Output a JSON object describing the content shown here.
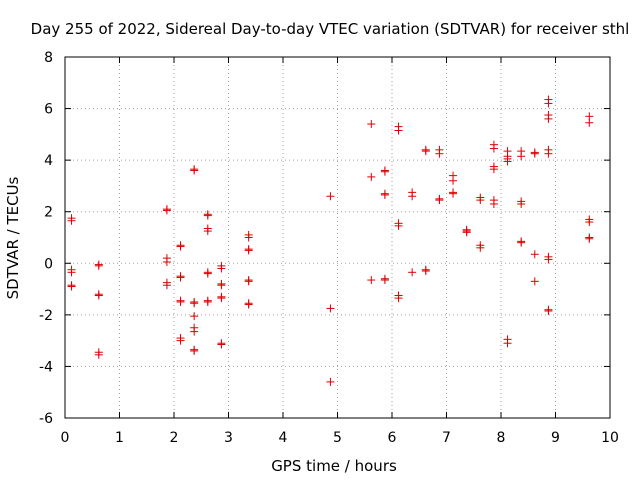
{
  "chart_data": {
    "type": "scatter",
    "title": "Day 255 of 2022, Sidereal Day-to-day VTEC variation (SDTVAR) for receiver sthl",
    "xlabel": "GPS time / hours",
    "ylabel": "SDTVAR / TECUs",
    "xlim": [
      0,
      10
    ],
    "ylim": [
      -6,
      8
    ],
    "xticks": [
      "0",
      "1",
      "2",
      "3",
      "4",
      "5",
      "6",
      "7",
      "8",
      "9",
      "10"
    ],
    "yticks": [
      "-6",
      "-4",
      "-2",
      "0",
      "2",
      "4",
      "6",
      "8"
    ],
    "grid": true,
    "marker": "+",
    "color": "#dd0000",
    "series": [
      {
        "name": "SDTVAR",
        "points": [
          [
            0.12,
            1.75
          ],
          [
            0.12,
            1.65
          ],
          [
            0.12,
            -0.25
          ],
          [
            0.12,
            -0.35
          ],
          [
            0.12,
            -0.85
          ],
          [
            0.12,
            -0.9
          ],
          [
            0.62,
            -0.05
          ],
          [
            0.62,
            -0.1
          ],
          [
            0.62,
            -1.2
          ],
          [
            0.62,
            -1.25
          ],
          [
            0.62,
            -3.45
          ],
          [
            0.62,
            -3.55
          ],
          [
            1.87,
            2.1
          ],
          [
            1.87,
            2.05
          ],
          [
            1.87,
            0.2
          ],
          [
            1.87,
            0.05
          ],
          [
            1.87,
            -0.75
          ],
          [
            1.87,
            -0.85
          ],
          [
            2.12,
            0.7
          ],
          [
            2.12,
            0.65
          ],
          [
            2.12,
            -0.5
          ],
          [
            2.12,
            -0.55
          ],
          [
            2.12,
            -1.45
          ],
          [
            2.12,
            -1.5
          ],
          [
            2.12,
            -2.9
          ],
          [
            2.12,
            -3.0
          ],
          [
            2.37,
            3.65
          ],
          [
            2.37,
            3.6
          ],
          [
            2.37,
            -1.5
          ],
          [
            2.37,
            -1.55
          ],
          [
            2.37,
            -2.05
          ],
          [
            2.37,
            -2.5
          ],
          [
            2.37,
            -2.65
          ],
          [
            2.37,
            -3.35
          ],
          [
            2.37,
            -3.4
          ],
          [
            2.62,
            1.9
          ],
          [
            2.62,
            1.85
          ],
          [
            2.62,
            1.35
          ],
          [
            2.62,
            1.25
          ],
          [
            2.62,
            -0.35
          ],
          [
            2.62,
            -0.4
          ],
          [
            2.62,
            -1.45
          ],
          [
            2.62,
            -1.5
          ],
          [
            2.87,
            -0.1
          ],
          [
            2.87,
            -0.2
          ],
          [
            2.87,
            -0.8
          ],
          [
            2.87,
            -0.85
          ],
          [
            2.87,
            -1.3
          ],
          [
            2.87,
            -1.35
          ],
          [
            2.87,
            -3.1
          ],
          [
            2.87,
            -3.15
          ],
          [
            3.37,
            1.1
          ],
          [
            3.37,
            1.0
          ],
          [
            3.37,
            0.55
          ],
          [
            3.37,
            0.5
          ],
          [
            3.37,
            -0.65
          ],
          [
            3.37,
            -0.7
          ],
          [
            3.37,
            -1.55
          ],
          [
            3.37,
            -1.6
          ],
          [
            4.87,
            2.6
          ],
          [
            4.87,
            -1.75
          ],
          [
            4.87,
            -4.6
          ],
          [
            5.62,
            5.4
          ],
          [
            5.62,
            3.35
          ],
          [
            5.62,
            -0.65
          ],
          [
            5.87,
            3.6
          ],
          [
            5.87,
            3.55
          ],
          [
            5.87,
            2.7
          ],
          [
            5.87,
            2.65
          ],
          [
            5.87,
            -0.6
          ],
          [
            5.87,
            -0.65
          ],
          [
            6.12,
            5.3
          ],
          [
            6.12,
            5.15
          ],
          [
            6.12,
            1.55
          ],
          [
            6.12,
            1.45
          ],
          [
            6.12,
            -1.25
          ],
          [
            6.12,
            -1.35
          ],
          [
            6.37,
            2.75
          ],
          [
            6.37,
            2.6
          ],
          [
            6.37,
            -0.35
          ],
          [
            6.62,
            4.4
          ],
          [
            6.62,
            4.35
          ],
          [
            6.62,
            -0.25
          ],
          [
            6.62,
            -0.3
          ],
          [
            6.87,
            4.4
          ],
          [
            6.87,
            4.25
          ],
          [
            6.87,
            2.5
          ],
          [
            6.87,
            2.45
          ],
          [
            7.12,
            3.4
          ],
          [
            7.12,
            3.2
          ],
          [
            7.12,
            2.75
          ],
          [
            7.12,
            2.7
          ],
          [
            7.37,
            1.3
          ],
          [
            7.37,
            1.25
          ],
          [
            7.37,
            1.2
          ],
          [
            7.62,
            2.55
          ],
          [
            7.62,
            2.45
          ],
          [
            7.62,
            0.7
          ],
          [
            7.62,
            0.6
          ],
          [
            7.87,
            4.6
          ],
          [
            7.87,
            4.45
          ],
          [
            7.87,
            3.75
          ],
          [
            7.87,
            3.65
          ],
          [
            7.87,
            2.45
          ],
          [
            7.87,
            2.3
          ],
          [
            8.12,
            4.35
          ],
          [
            8.12,
            4.15
          ],
          [
            8.12,
            4.05
          ],
          [
            8.12,
            3.95
          ],
          [
            8.12,
            -2.95
          ],
          [
            8.12,
            -3.1
          ],
          [
            8.37,
            4.35
          ],
          [
            8.37,
            4.15
          ],
          [
            8.37,
            2.4
          ],
          [
            8.37,
            2.3
          ],
          [
            8.37,
            0.85
          ],
          [
            8.37,
            0.8
          ],
          [
            8.62,
            4.3
          ],
          [
            8.62,
            4.25
          ],
          [
            8.62,
            0.35
          ],
          [
            8.62,
            -0.7
          ],
          [
            8.87,
            6.35
          ],
          [
            8.87,
            6.2
          ],
          [
            8.87,
            5.75
          ],
          [
            8.87,
            5.6
          ],
          [
            8.87,
            4.4
          ],
          [
            8.87,
            4.25
          ],
          [
            8.87,
            0.25
          ],
          [
            8.87,
            0.15
          ],
          [
            8.87,
            -1.8
          ],
          [
            8.87,
            -1.85
          ],
          [
            9.62,
            5.7
          ],
          [
            9.62,
            5.45
          ],
          [
            9.62,
            1.7
          ],
          [
            9.62,
            1.6
          ],
          [
            9.62,
            1.0
          ],
          [
            9.62,
            0.95
          ]
        ]
      }
    ]
  }
}
